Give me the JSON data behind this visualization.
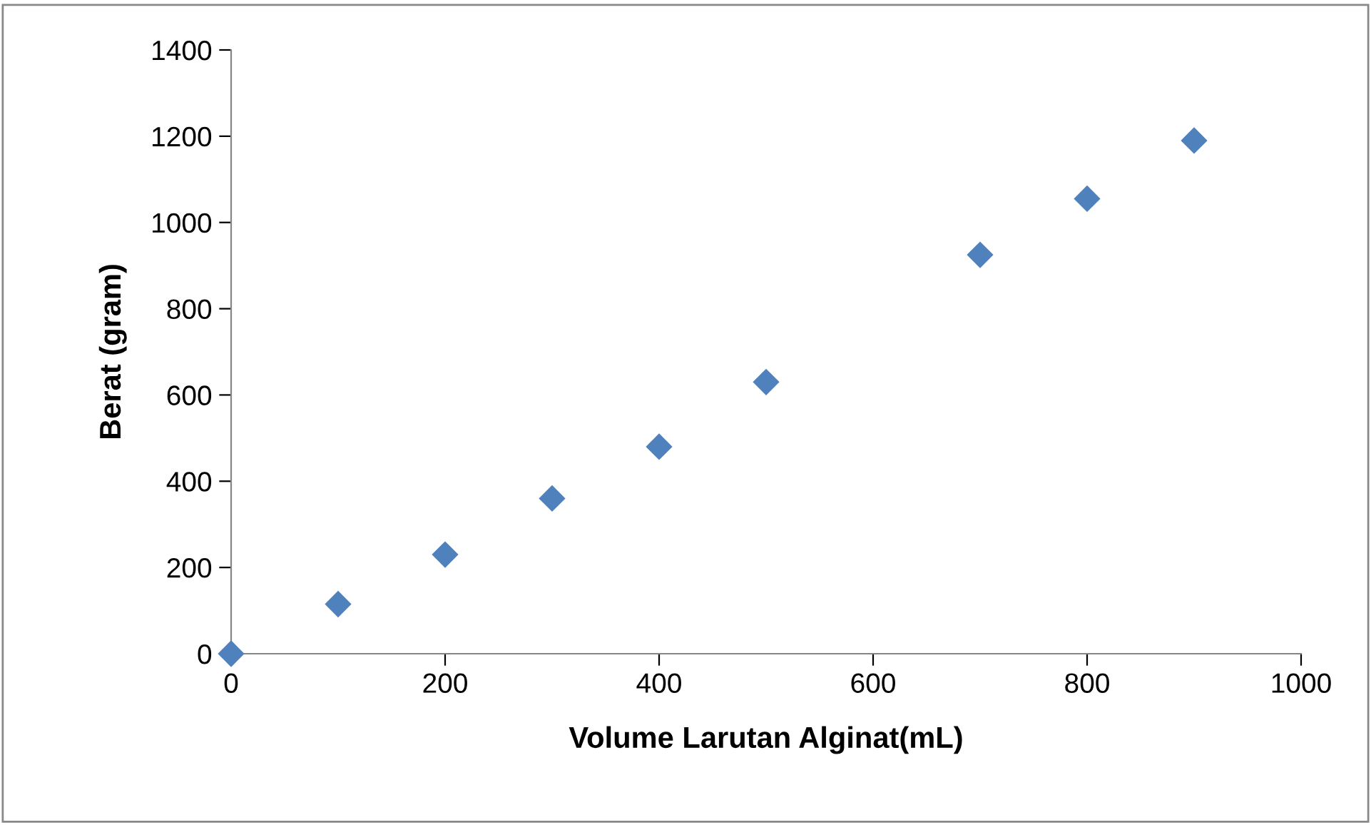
{
  "chart_data": {
    "type": "scatter",
    "xlabel": "Volume Larutan Alginat(mL)",
    "ylabel": "Berat (gram)",
    "x": [
      0,
      100,
      200,
      300,
      400,
      500,
      700,
      800,
      900
    ],
    "series": [
      {
        "color": "#4f81bd",
        "values": [
          0,
          115,
          230,
          360,
          480,
          630,
          925,
          1055,
          1190
        ]
      }
    ],
    "xlim": [
      0,
      1000
    ],
    "xticks": [
      0,
      200,
      400,
      600,
      800,
      1000
    ],
    "ylim": [
      0,
      1400
    ],
    "yticks": [
      0,
      200,
      400,
      600,
      800,
      1000,
      1200,
      1400
    ],
    "marker": "diamond",
    "grid": false,
    "legend": false
  }
}
